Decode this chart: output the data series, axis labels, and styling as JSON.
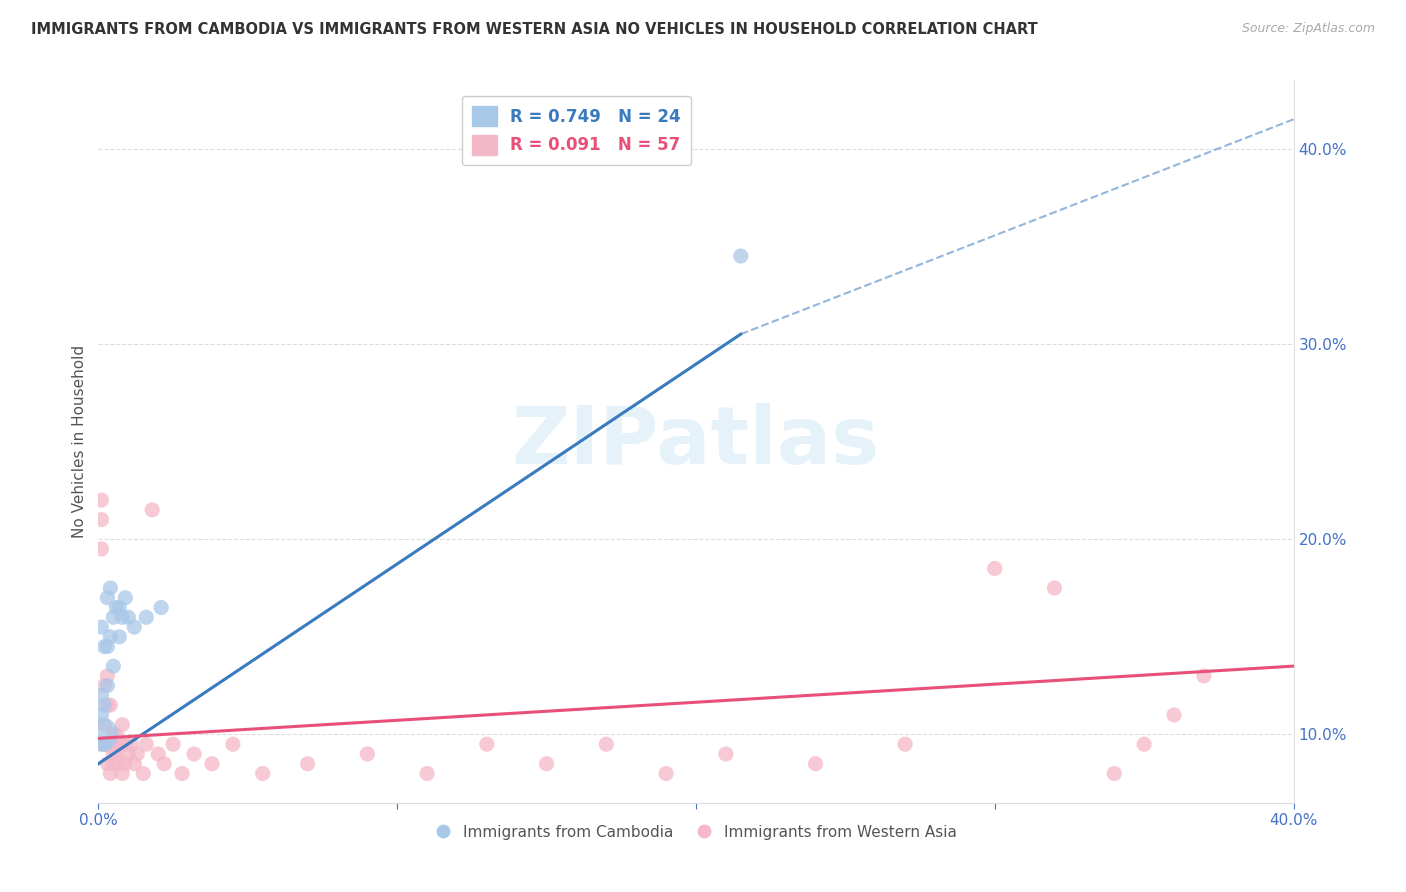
{
  "title": "IMMIGRANTS FROM CAMBODIA VS IMMIGRANTS FROM WESTERN ASIA NO VEHICLES IN HOUSEHOLD CORRELATION CHART",
  "source": "Source: ZipAtlas.com",
  "xlim": [
    0.0,
    0.4
  ],
  "ylim": [
    0.065,
    0.435
  ],
  "blue_color": "#a8c8e8",
  "pink_color": "#f4b8c8",
  "blue_line_color": "#3a7abf",
  "pink_line_color": "#e8507a",
  "watermark": "ZIPatlas",
  "legend1_label": "R = 0.749   N = 24",
  "legend2_label": "R = 0.091   N = 57",
  "legend_x_label": "Immigrants from Cambodia",
  "legend_y_label": "Immigrants from Western Asia",
  "cambodia_x": [
    0.001,
    0.001,
    0.001,
    0.001,
    0.002,
    0.002,
    0.002,
    0.003,
    0.003,
    0.003,
    0.004,
    0.004,
    0.005,
    0.005,
    0.006,
    0.007,
    0.007,
    0.008,
    0.009,
    0.01,
    0.012,
    0.016,
    0.021,
    0.215
  ],
  "cambodia_y": [
    0.1,
    0.11,
    0.12,
    0.155,
    0.095,
    0.115,
    0.145,
    0.125,
    0.145,
    0.17,
    0.15,
    0.175,
    0.135,
    0.16,
    0.165,
    0.15,
    0.165,
    0.16,
    0.17,
    0.16,
    0.155,
    0.16,
    0.165,
    0.345
  ],
  "cambodia_sizes": [
    600,
    120,
    120,
    120,
    120,
    120,
    120,
    120,
    120,
    120,
    120,
    120,
    120,
    120,
    120,
    120,
    120,
    120,
    120,
    120,
    120,
    120,
    120,
    120
  ],
  "western_x": [
    0.001,
    0.001,
    0.001,
    0.001,
    0.002,
    0.002,
    0.002,
    0.003,
    0.003,
    0.003,
    0.003,
    0.004,
    0.004,
    0.004,
    0.005,
    0.005,
    0.005,
    0.006,
    0.006,
    0.007,
    0.007,
    0.008,
    0.008,
    0.008,
    0.009,
    0.009,
    0.01,
    0.011,
    0.012,
    0.013,
    0.015,
    0.016,
    0.018,
    0.02,
    0.022,
    0.025,
    0.028,
    0.032,
    0.038,
    0.045,
    0.055,
    0.07,
    0.09,
    0.11,
    0.13,
    0.15,
    0.17,
    0.19,
    0.21,
    0.24,
    0.27,
    0.3,
    0.32,
    0.34,
    0.35,
    0.36,
    0.37
  ],
  "western_y": [
    0.195,
    0.21,
    0.22,
    0.095,
    0.105,
    0.125,
    0.095,
    0.095,
    0.115,
    0.13,
    0.085,
    0.095,
    0.115,
    0.08,
    0.1,
    0.085,
    0.09,
    0.09,
    0.1,
    0.095,
    0.085,
    0.095,
    0.105,
    0.08,
    0.095,
    0.085,
    0.09,
    0.095,
    0.085,
    0.09,
    0.08,
    0.095,
    0.215,
    0.09,
    0.085,
    0.095,
    0.08,
    0.09,
    0.085,
    0.095,
    0.08,
    0.085,
    0.09,
    0.08,
    0.095,
    0.085,
    0.095,
    0.08,
    0.09,
    0.085,
    0.095,
    0.185,
    0.175,
    0.08,
    0.095,
    0.11,
    0.13
  ],
  "western_sizes": [
    120,
    120,
    120,
    120,
    120,
    120,
    120,
    120,
    120,
    120,
    120,
    120,
    120,
    120,
    120,
    120,
    120,
    120,
    120,
    120,
    120,
    120,
    120,
    120,
    120,
    120,
    120,
    120,
    120,
    120,
    120,
    120,
    120,
    120,
    120,
    120,
    120,
    120,
    120,
    120,
    120,
    120,
    120,
    120,
    120,
    120,
    120,
    120,
    120,
    120,
    120,
    120,
    120,
    120,
    120,
    120,
    120
  ],
  "blue_line_x0": 0.0,
  "blue_line_y0": 0.085,
  "blue_line_x1": 0.215,
  "blue_line_y1": 0.305,
  "blue_line_dash_x0": 0.215,
  "blue_line_dash_y0": 0.305,
  "blue_line_dash_x1": 0.4,
  "blue_line_dash_y1": 0.415,
  "pink_line_x0": 0.0,
  "pink_line_y0": 0.098,
  "pink_line_x1": 0.4,
  "pink_line_y1": 0.135
}
